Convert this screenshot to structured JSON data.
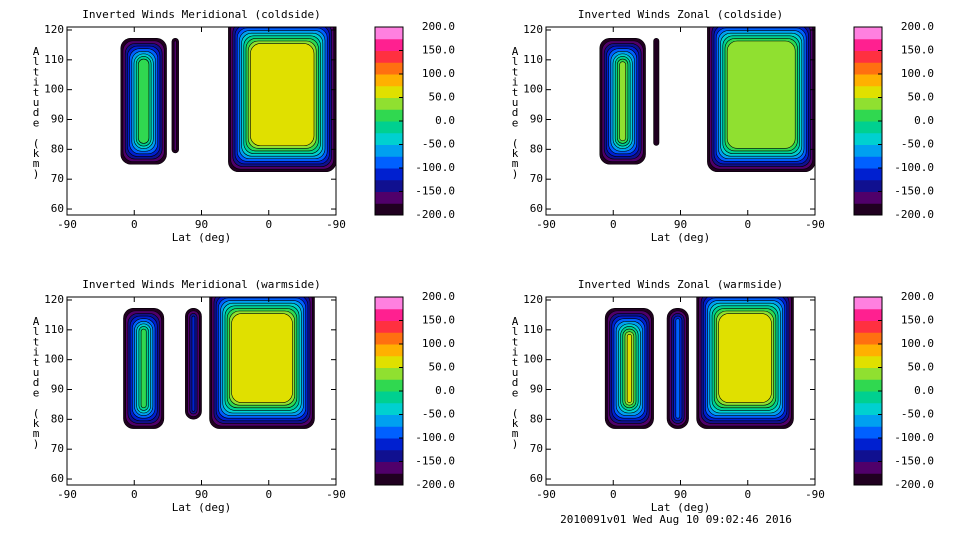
{
  "chart_data": [
    {
      "type": "contour",
      "title": "Inverted Winds Meridional (coldside)",
      "xlabel": "Lat (deg)",
      "ylabel": "Altitude (km)",
      "xtick_labels": [
        "-90",
        "0",
        "90",
        "0",
        "-90"
      ],
      "ylim": [
        58,
        121
      ],
      "yticks": [
        60,
        70,
        80,
        90,
        100,
        110,
        120
      ],
      "clim": [
        -200,
        200
      ],
      "cticks": [
        {
          "value": 200,
          "label": "200.0"
        },
        {
          "value": 150,
          "label": "150.0"
        },
        {
          "value": 100,
          "label": "100.0"
        },
        {
          "value": 50,
          "label": "50.0"
        },
        {
          "value": 0,
          "label": "0.0"
        },
        {
          "value": -50,
          "label": "-50.0"
        },
        {
          "value": -100,
          "label": "-100.0"
        },
        {
          "value": -150,
          "label": "-150.0"
        },
        {
          "value": -200,
          "label": "-200.0"
        }
      ],
      "colors": [
        "#200020",
        "#50006a",
        "#101090",
        "#0020d0",
        "#0060ff",
        "#00a0f0",
        "#00d0d0",
        "#00d090",
        "#30d850",
        "#90e030",
        "#e0e000",
        "#ffb000",
        "#ff7010",
        "#ff3040",
        "#ff2090",
        "#ff80e0"
      ]
    },
    {
      "type": "contour",
      "title": "Inverted Winds Zonal (coldside)",
      "xlabel": "Lat (deg)",
      "ylabel": "Altitude (km)",
      "xtick_labels": [
        "-90",
        "0",
        "90",
        "0",
        "-90"
      ],
      "ylim": [
        58,
        121
      ],
      "yticks": [
        60,
        70,
        80,
        90,
        100,
        110,
        120
      ],
      "clim": [
        -200,
        200
      ],
      "cticks": [
        {
          "value": 200,
          "label": "200.0"
        },
        {
          "value": 150,
          "label": "150.0"
        },
        {
          "value": 100,
          "label": "100.0"
        },
        {
          "value": 50,
          "label": "50.0"
        },
        {
          "value": 0,
          "label": "0.0"
        },
        {
          "value": -50,
          "label": "-50.0"
        },
        {
          "value": -100,
          "label": "-100.0"
        },
        {
          "value": -150,
          "label": "-150.0"
        },
        {
          "value": -200,
          "label": "-200.0"
        }
      ],
      "colors": [
        "#200020",
        "#50006a",
        "#101090",
        "#0020d0",
        "#0060ff",
        "#00a0f0",
        "#00d0d0",
        "#00d090",
        "#30d850",
        "#90e030",
        "#e0e000",
        "#ffb000",
        "#ff7010",
        "#ff3040",
        "#ff2090",
        "#ff80e0"
      ]
    },
    {
      "type": "contour",
      "title": "Inverted Winds Meridional (warmside)",
      "xlabel": "Lat (deg)",
      "ylabel": "Altitude (km)",
      "xtick_labels": [
        "-90",
        "0",
        "90",
        "0",
        "-90"
      ],
      "ylim": [
        58,
        121
      ],
      "yticks": [
        60,
        70,
        80,
        90,
        100,
        110,
        120
      ],
      "clim": [
        -200,
        200
      ],
      "cticks": [
        {
          "value": 200,
          "label": "200.0"
        },
        {
          "value": 150,
          "label": "150.0"
        },
        {
          "value": 100,
          "label": "100.0"
        },
        {
          "value": 50,
          "label": "50.0"
        },
        {
          "value": 0,
          "label": "0.0"
        },
        {
          "value": -50,
          "label": "-50.0"
        },
        {
          "value": -100,
          "label": "-100.0"
        },
        {
          "value": -150,
          "label": "-150.0"
        },
        {
          "value": -200,
          "label": "-200.0"
        }
      ],
      "colors": [
        "#200020",
        "#50006a",
        "#101090",
        "#0020d0",
        "#0060ff",
        "#00a0f0",
        "#00d0d0",
        "#00d090",
        "#30d850",
        "#90e030",
        "#e0e000",
        "#ffb000",
        "#ff7010",
        "#ff3040",
        "#ff2090",
        "#ff80e0"
      ]
    },
    {
      "type": "contour",
      "title": "Inverted Winds Zonal (warmside)",
      "xlabel": "Lat (deg)",
      "ylabel": "Altitude (km)",
      "xtick_labels": [
        "-90",
        "0",
        "90",
        "0",
        "-90"
      ],
      "ylim": [
        58,
        121
      ],
      "yticks": [
        60,
        70,
        80,
        90,
        100,
        110,
        120
      ],
      "clim": [
        -200,
        200
      ],
      "cticks": [
        {
          "value": 200,
          "label": "200.0"
        },
        {
          "value": 150,
          "label": "150.0"
        },
        {
          "value": 100,
          "label": "100.0"
        },
        {
          "value": 50,
          "label": "50.0"
        },
        {
          "value": 0,
          "label": "0.0"
        },
        {
          "value": -50,
          "label": "-50.0"
        },
        {
          "value": -100,
          "label": "-100.0"
        },
        {
          "value": -150,
          "label": "-150.0"
        },
        {
          "value": -200,
          "label": "-200.0"
        }
      ],
      "colors": [
        "#200020",
        "#50006a",
        "#101090",
        "#0020d0",
        "#0060ff",
        "#00a0f0",
        "#00d0d0",
        "#00d090",
        "#30d850",
        "#90e030",
        "#e0e000",
        "#ffb000",
        "#ff7010",
        "#ff3040",
        "#ff2090",
        "#ff80e0"
      ]
    }
  ],
  "footer": "2010091v01 Wed Aug 10 09:02:46 2016"
}
